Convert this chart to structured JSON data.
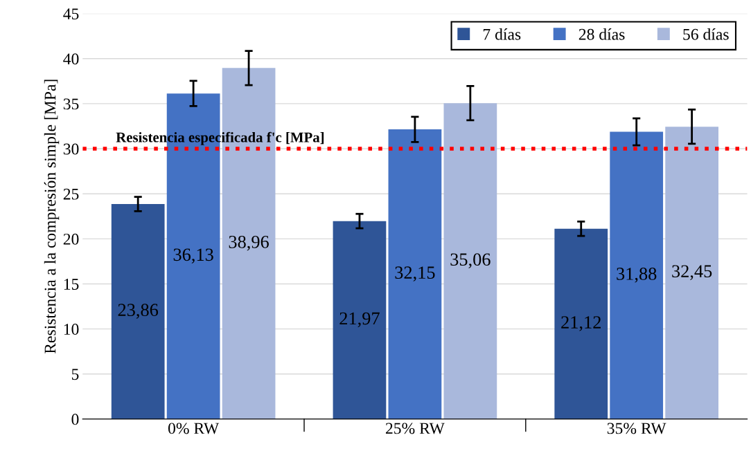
{
  "chart_data": {
    "type": "bar",
    "ylabel": "Resistencia a la compresión simple [MPa]",
    "categories": [
      "0% RW",
      "25% RW",
      "35% RW"
    ],
    "series": [
      {
        "name": "7 días",
        "color": "#2f5597",
        "values": [
          23.86,
          21.97,
          21.12
        ],
        "errors": [
          0.8,
          0.8,
          0.8
        ],
        "value_labels": [
          "23,86",
          "21,97",
          "21,12"
        ]
      },
      {
        "name": "28 días",
        "color": "#4472c4",
        "values": [
          36.13,
          32.15,
          31.88
        ],
        "errors": [
          1.4,
          1.4,
          1.5
        ],
        "value_labels": [
          "36,13",
          "32,15",
          "31,88"
        ]
      },
      {
        "name": "56 días",
        "color": "#a9b8dc",
        "values": [
          38.96,
          35.06,
          32.45
        ],
        "errors": [
          1.9,
          1.9,
          1.9
        ],
        "value_labels": [
          "38,96",
          "35,06",
          "32,45"
        ]
      }
    ],
    "ylim": [
      0,
      45
    ],
    "yticks": [
      0,
      5,
      10,
      15,
      20,
      25,
      30,
      35,
      40,
      45
    ],
    "grid": "y",
    "legend": "top right",
    "ref_lines": [
      {
        "axis": "y",
        "value": 30,
        "label": "Resistencia especificada f'c [MPa]",
        "color": "#ff0000",
        "line_style": "dotted"
      }
    ]
  }
}
